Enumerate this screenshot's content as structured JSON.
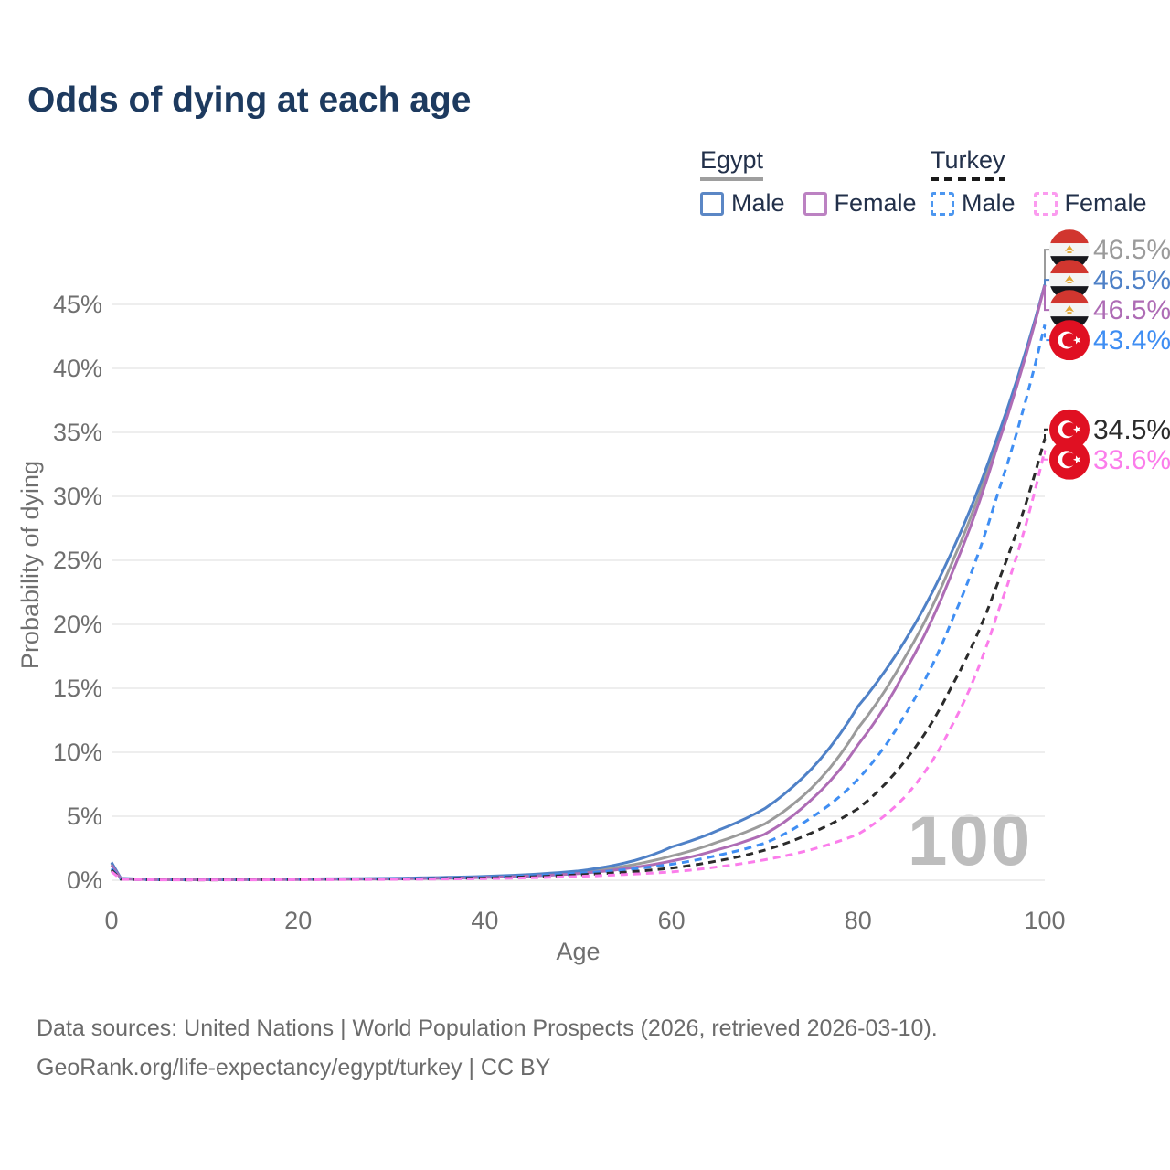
{
  "title": "Odds of dying at each age",
  "legend": {
    "egypt": {
      "label": "Egypt",
      "male_label": "Male",
      "female_label": "Female",
      "male_color": "#5b87c5",
      "female_color": "#bc82c2",
      "underline_color": "#9e9e9e"
    },
    "turkey": {
      "label": "Turkey",
      "male_label": "Male",
      "female_label": "Female",
      "male_color": "#4d97f0",
      "female_color": "#fb9bef",
      "underline_color": "#1a1a1a"
    }
  },
  "watermark": "100",
  "footer": {
    "line1": "Data sources: United Nations | World Population Prospects (2026, retrieved 2026-03-10).",
    "line2": "GeoRank.org/life-expectancy/egypt/turkey | CC BY"
  },
  "chart_data": {
    "type": "line",
    "title": "Odds of dying at each age",
    "xlabel": "Age",
    "ylabel": "Probability of dying",
    "xlim": [
      0,
      100
    ],
    "ylim_pct": [
      0,
      48
    ],
    "grid": "horizontal",
    "x_ticks": [
      {
        "value": 0,
        "label": "0"
      },
      {
        "value": 20,
        "label": "20"
      },
      {
        "value": 40,
        "label": "40"
      },
      {
        "value": 60,
        "label": "60"
      },
      {
        "value": 80,
        "label": "80"
      },
      {
        "value": 100,
        "label": "100"
      }
    ],
    "y_ticks": [
      {
        "value": 0,
        "label": "0%"
      },
      {
        "value": 5,
        "label": "5%"
      },
      {
        "value": 10,
        "label": "10%"
      },
      {
        "value": 15,
        "label": "15%"
      },
      {
        "value": 20,
        "label": "20%"
      },
      {
        "value": 25,
        "label": "25%"
      },
      {
        "value": 30,
        "label": "30%"
      },
      {
        "value": 35,
        "label": "35%"
      },
      {
        "value": 40,
        "label": "40%"
      },
      {
        "value": 45,
        "label": "45%"
      }
    ],
    "ages": [
      0,
      1,
      5,
      10,
      15,
      20,
      25,
      30,
      35,
      40,
      45,
      50,
      55,
      60,
      65,
      70,
      75,
      80,
      85,
      90,
      95,
      100
    ],
    "series": [
      {
        "name": "Egypt all",
        "color": "#9b9b9b",
        "dashed": false,
        "flag": "egypt",
        "end_label": "46.5%",
        "values_pct": [
          1.3,
          0.13,
          0.05,
          0.045,
          0.06,
          0.08,
          0.1,
          0.13,
          0.18,
          0.26,
          0.39,
          0.62,
          1.1,
          1.9,
          3.0,
          4.4,
          7.2,
          11.9,
          17.4,
          24.7,
          34.5,
          46.55
        ]
      },
      {
        "name": "Egypt male",
        "color": "#4f81c7",
        "dashed": false,
        "flag": "egypt",
        "end_label": "46.5%",
        "values_pct": [
          1.4,
          0.15,
          0.06,
          0.05,
          0.07,
          0.1,
          0.12,
          0.15,
          0.21,
          0.3,
          0.46,
          0.72,
          1.35,
          2.6,
          3.9,
          5.6,
          8.7,
          13.6,
          18.7,
          25.6,
          34.8,
          46.53
        ]
      },
      {
        "name": "Egypt female",
        "color": "#ae6cb5",
        "dashed": false,
        "flag": "egypt",
        "end_label": "46.5%",
        "values_pct": [
          1.18,
          0.12,
          0.045,
          0.04,
          0.05,
          0.06,
          0.08,
          0.11,
          0.15,
          0.22,
          0.33,
          0.52,
          0.9,
          1.5,
          2.4,
          3.6,
          6.3,
          10.6,
          16.3,
          23.9,
          34.1,
          46.48
        ]
      },
      {
        "name": "Turkey male",
        "color": "#3f8ef3",
        "dashed": true,
        "flag": "turkey",
        "end_label": "43.4%",
        "values_pct": [
          0.92,
          0.09,
          0.04,
          0.035,
          0.05,
          0.08,
          0.1,
          0.12,
          0.16,
          0.23,
          0.35,
          0.55,
          0.82,
          1.25,
          1.95,
          2.9,
          4.9,
          7.9,
          12.9,
          20.2,
          30.3,
          43.4
        ]
      },
      {
        "name": "Turkey all",
        "color": "#2b2b2b",
        "dashed": true,
        "flag": "turkey",
        "end_label": "34.5%",
        "values_pct": [
          0.8,
          0.08,
          0.035,
          0.03,
          0.04,
          0.06,
          0.08,
          0.1,
          0.13,
          0.18,
          0.27,
          0.42,
          0.63,
          0.95,
          1.52,
          2.35,
          3.7,
          5.6,
          9.3,
          15.1,
          23.3,
          34.5
        ]
      },
      {
        "name": "Turkey female",
        "color": "#fb7deb",
        "dashed": true,
        "flag": "turkey",
        "end_label": "33.6%",
        "values_pct": [
          0.68,
          0.07,
          0.03,
          0.025,
          0.03,
          0.04,
          0.05,
          0.07,
          0.09,
          0.13,
          0.19,
          0.3,
          0.45,
          0.65,
          1.05,
          1.6,
          2.4,
          3.6,
          6.5,
          12.0,
          21.0,
          33.6
        ]
      }
    ],
    "legend_position": "top-right",
    "hover_age_indicator": "100"
  }
}
